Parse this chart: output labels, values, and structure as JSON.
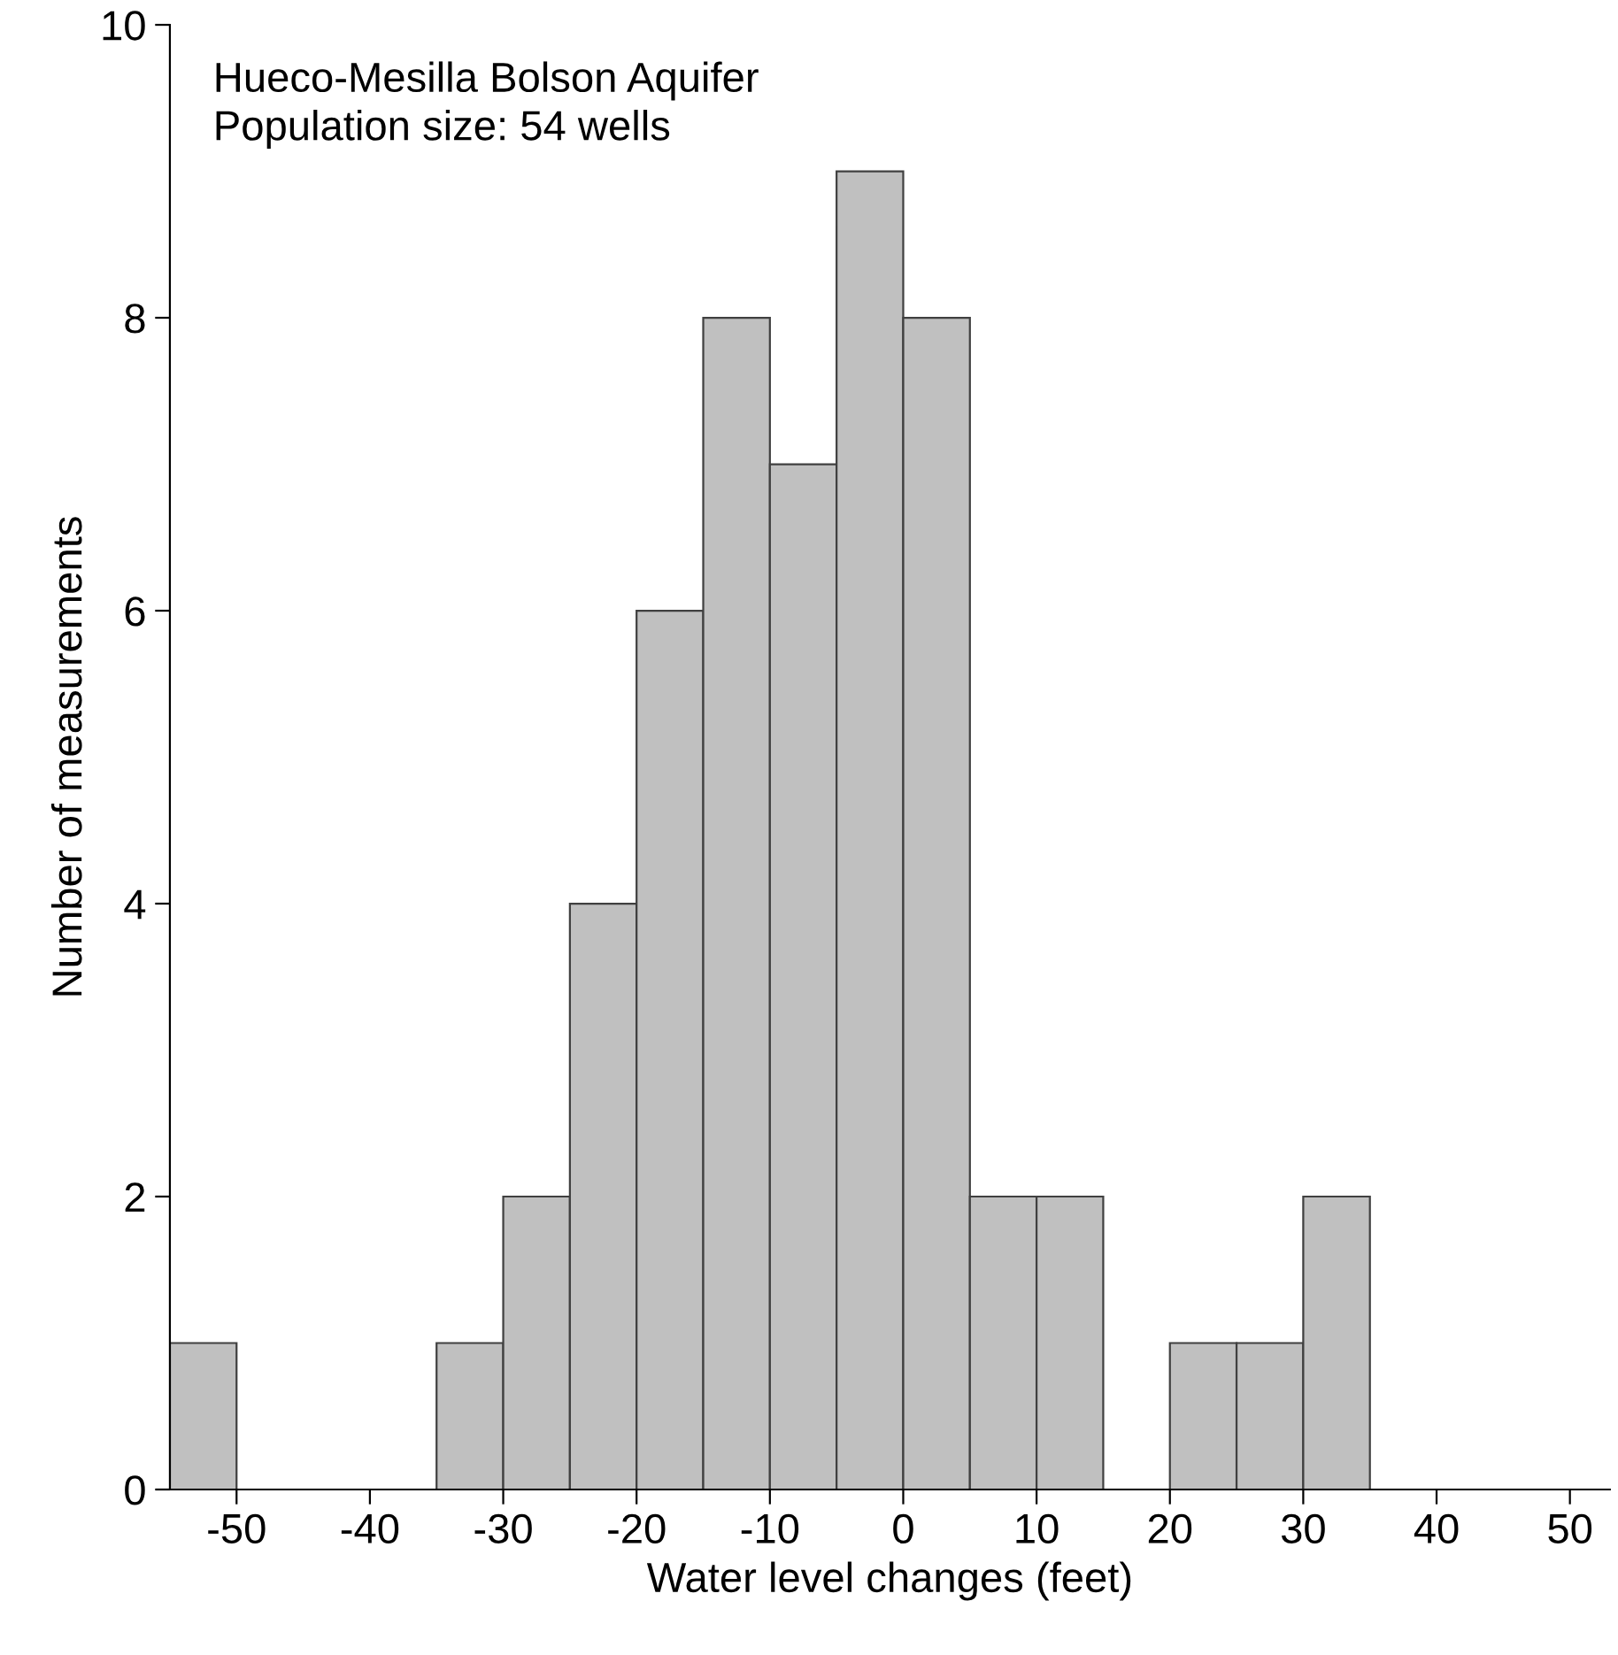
{
  "chart_data": {
    "type": "histogram",
    "xlabel": "Water level changes (feet)",
    "ylabel": "Number of measurements",
    "annotations": [
      "Hueco-Mesilla Bolson Aquifer",
      "Population size: 54 wells"
    ],
    "bins": [
      -55,
      -50,
      -45,
      -40,
      -35,
      -30,
      -25,
      -20,
      -15,
      -10,
      -5,
      0,
      5,
      10,
      15,
      20,
      25,
      30,
      35
    ],
    "values": [
      1,
      0,
      0,
      0,
      1,
      2,
      4,
      6,
      8,
      7,
      9,
      8,
      2,
      2,
      0,
      1,
      1,
      2
    ],
    "color": "#c0c0c0",
    "xlim": [
      -55,
      53
    ],
    "xticks": [
      -50,
      -40,
      -30,
      -20,
      -10,
      0,
      10,
      20,
      30,
      40,
      50
    ],
    "ylim": [
      0,
      10
    ],
    "yticks": [
      0,
      2,
      4,
      6,
      8,
      10
    ],
    "grid": false
  }
}
